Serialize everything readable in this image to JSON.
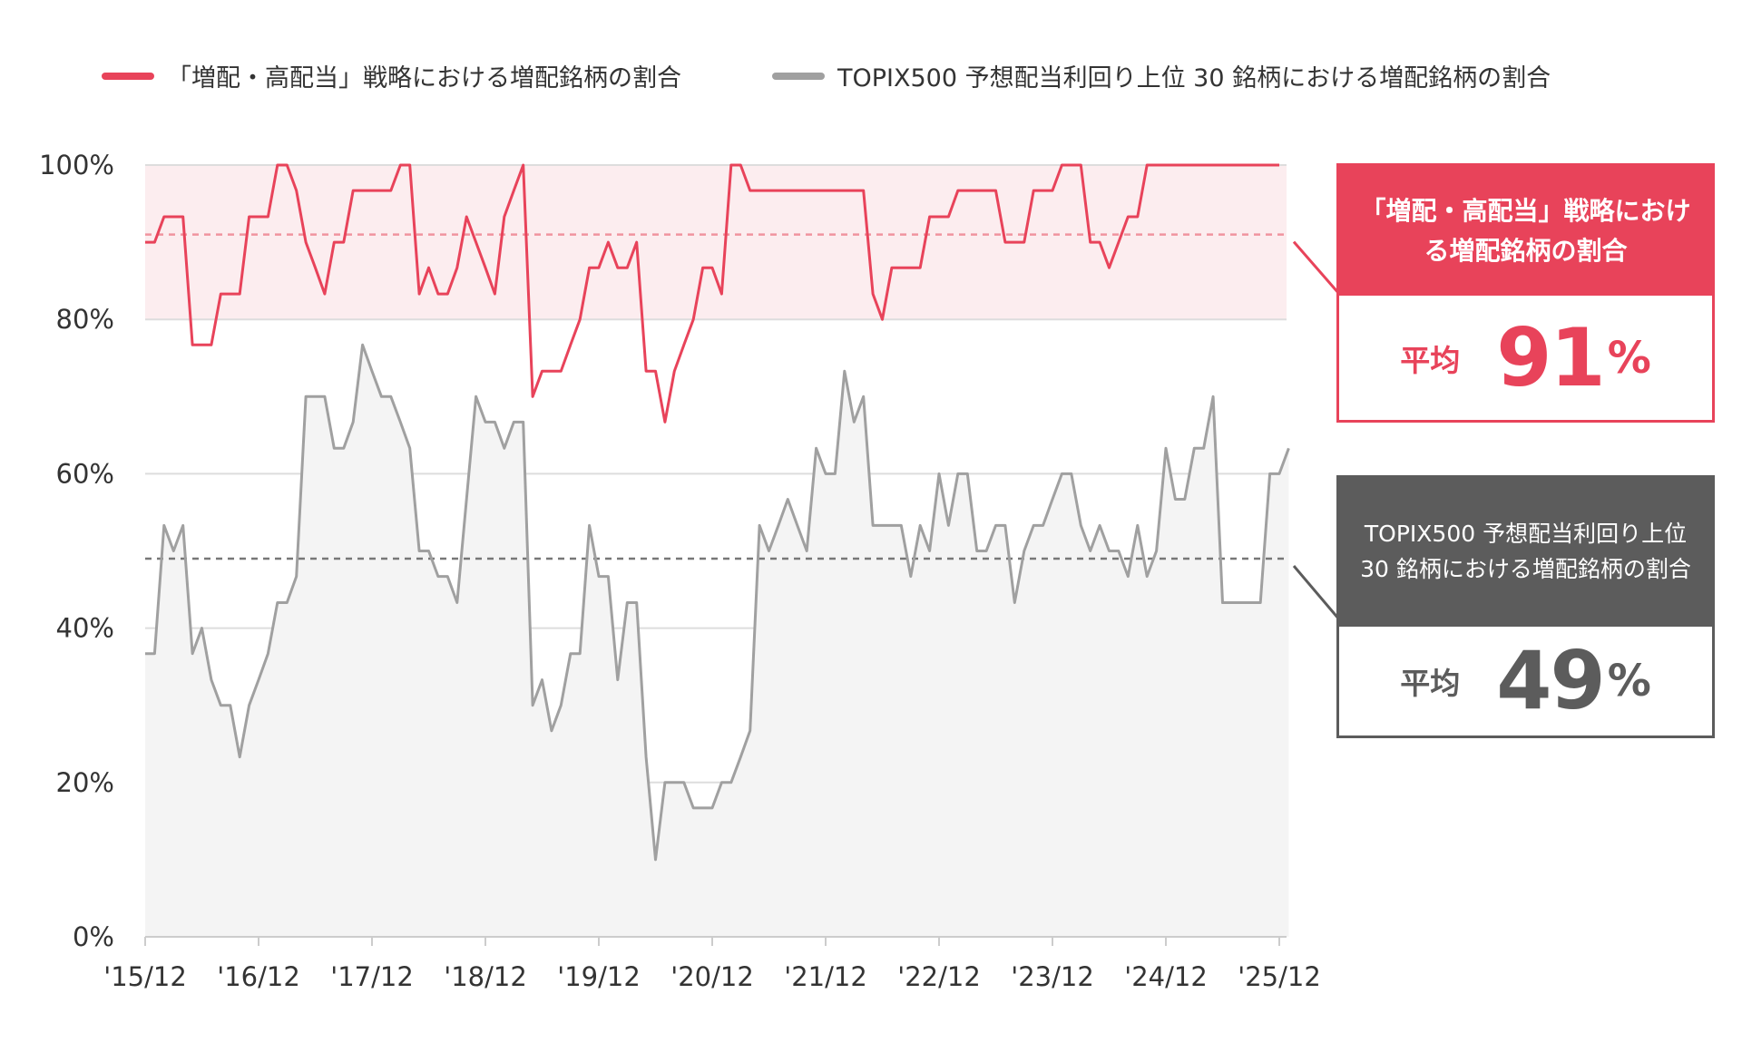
{
  "legend": [
    {
      "label": "「増配・高配当」戦略における増配銘柄の割合",
      "color": "#e8435a"
    },
    {
      "label": "TOPIX500 予想配当利回り上位 30 銘柄における増配銘柄の割合",
      "color": "#a0a0a0"
    }
  ],
  "callouts": {
    "strategy": {
      "title": "「増配・高配当」戦略における増配銘柄の割合",
      "avg_label": "平均",
      "avg_value": "91",
      "unit": "%",
      "color": "#e8435a"
    },
    "topix": {
      "title": "TOPIX500 予想配当利回り上位 30 銘柄における増配銘柄の割合",
      "avg_label": "平均",
      "avg_value": "49",
      "unit": "%",
      "color": "#5c5c5c"
    }
  },
  "chart_data": {
    "type": "line",
    "x_tick_labels": [
      "'15/12",
      "'16/12",
      "'17/12",
      "'18/12",
      "'19/12",
      "'20/12",
      "'21/12",
      "'22/12",
      "'23/12",
      "'24/12",
      "'25/12"
    ],
    "y_tick_labels": [
      "0%",
      "20%",
      "40%",
      "60%",
      "80%",
      "100%"
    ],
    "ylim": [
      0,
      100
    ],
    "xlim": [
      "2015-12",
      "2025-12"
    ],
    "grid": true,
    "legend_position": "top",
    "averages": [
      91,
      49
    ],
    "series": [
      {
        "name": "「増配・高配当」戦略における増配銘柄の割合",
        "color": "#e8435a",
        "values": [
          [
            "2015-12",
            90
          ],
          [
            "2016-01",
            90
          ],
          [
            "2016-02",
            93.3
          ],
          [
            "2016-03",
            93.3
          ],
          [
            "2016-04",
            93.3
          ],
          [
            "2016-05",
            76.7
          ],
          [
            "2016-06",
            76.7
          ],
          [
            "2016-07",
            76.7
          ],
          [
            "2016-08",
            83.3
          ],
          [
            "2016-09",
            83.3
          ],
          [
            "2016-10",
            83.3
          ],
          [
            "2016-11",
            93.3
          ],
          [
            "2016-12",
            93.3
          ],
          [
            "2017-01",
            93.3
          ],
          [
            "2017-02",
            100
          ],
          [
            "2017-03",
            100
          ],
          [
            "2017-04",
            96.7
          ],
          [
            "2017-05",
            90
          ],
          [
            "2017-06",
            86.7
          ],
          [
            "2017-07",
            83.3
          ],
          [
            "2017-08",
            90
          ],
          [
            "2017-09",
            90
          ],
          [
            "2017-10",
            96.7
          ],
          [
            "2017-11",
            96.7
          ],
          [
            "2017-12",
            96.7
          ],
          [
            "2018-01",
            96.7
          ],
          [
            "2018-02",
            96.7
          ],
          [
            "2018-03",
            100
          ],
          [
            "2018-04",
            100
          ],
          [
            "2018-05",
            83.3
          ],
          [
            "2018-06",
            86.7
          ],
          [
            "2018-07",
            83.3
          ],
          [
            "2018-08",
            83.3
          ],
          [
            "2018-09",
            86.7
          ],
          [
            "2018-10",
            93.3
          ],
          [
            "2018-11",
            90
          ],
          [
            "2018-12",
            86.7
          ],
          [
            "2019-01",
            83.3
          ],
          [
            "2019-02",
            93.3
          ],
          [
            "2019-03",
            96.7
          ],
          [
            "2019-04",
            100
          ],
          [
            "2019-05",
            70
          ],
          [
            "2019-06",
            73.3
          ],
          [
            "2019-07",
            73.3
          ],
          [
            "2019-08",
            73.3
          ],
          [
            "2019-09",
            76.7
          ],
          [
            "2019-10",
            80
          ],
          [
            "2019-11",
            86.7
          ],
          [
            "2019-12",
            86.7
          ],
          [
            "2020-01",
            90
          ],
          [
            "2020-02",
            86.7
          ],
          [
            "2020-03",
            86.7
          ],
          [
            "2020-04",
            90
          ],
          [
            "2020-05",
            73.3
          ],
          [
            "2020-06",
            73.3
          ],
          [
            "2020-07",
            66.7
          ],
          [
            "2020-08",
            73.3
          ],
          [
            "2020-09",
            76.7
          ],
          [
            "2020-10",
            80
          ],
          [
            "2020-11",
            86.7
          ],
          [
            "2020-12",
            86.7
          ],
          [
            "2021-01",
            83.3
          ],
          [
            "2021-02",
            100
          ],
          [
            "2021-03",
            100
          ],
          [
            "2021-04",
            96.7
          ],
          [
            "2021-05",
            96.7
          ],
          [
            "2021-06",
            96.7
          ],
          [
            "2021-07",
            96.7
          ],
          [
            "2021-08",
            96.7
          ],
          [
            "2021-09",
            96.7
          ],
          [
            "2021-10",
            96.7
          ],
          [
            "2021-11",
            96.7
          ],
          [
            "2021-12",
            96.7
          ],
          [
            "2022-01",
            96.7
          ],
          [
            "2022-02",
            96.7
          ],
          [
            "2022-03",
            96.7
          ],
          [
            "2022-04",
            96.7
          ],
          [
            "2022-05",
            83.3
          ],
          [
            "2022-06",
            80
          ],
          [
            "2022-07",
            86.7
          ],
          [
            "2022-08",
            86.7
          ],
          [
            "2022-09",
            86.7
          ],
          [
            "2022-10",
            86.7
          ],
          [
            "2022-11",
            93.3
          ],
          [
            "2022-12",
            93.3
          ],
          [
            "2023-01",
            93.3
          ],
          [
            "2023-02",
            96.7
          ],
          [
            "2023-03",
            96.7
          ],
          [
            "2023-04",
            96.7
          ],
          [
            "2023-05",
            96.7
          ],
          [
            "2023-06",
            96.7
          ],
          [
            "2023-07",
            90
          ],
          [
            "2023-08",
            90
          ],
          [
            "2023-09",
            90
          ],
          [
            "2023-10",
            96.7
          ],
          [
            "2023-11",
            96.7
          ],
          [
            "2023-12",
            96.7
          ],
          [
            "2024-01",
            100
          ],
          [
            "2024-02",
            100
          ],
          [
            "2024-03",
            100
          ],
          [
            "2024-04",
            90
          ],
          [
            "2024-05",
            90
          ],
          [
            "2024-06",
            86.7
          ],
          [
            "2024-07",
            90
          ],
          [
            "2024-08",
            93.3
          ],
          [
            "2024-09",
            93.3
          ],
          [
            "2024-10",
            100
          ],
          [
            "2024-11",
            100
          ],
          [
            "2024-12",
            100
          ],
          [
            "2025-01",
            100
          ],
          [
            "2025-02",
            100
          ],
          [
            "2025-03",
            100
          ],
          [
            "2025-04",
            100
          ],
          [
            "2025-05",
            100
          ],
          [
            "2025-06",
            100
          ],
          [
            "2025-07",
            100
          ],
          [
            "2025-08",
            100
          ],
          [
            "2025-09",
            100
          ],
          [
            "2025-10",
            100
          ],
          [
            "2025-11",
            100
          ],
          [
            "2025-12",
            100
          ]
        ]
      },
      {
        "name": "TOPIX500 予想配当利回り上位 30 銘柄における増配銘柄の割合",
        "color": "#a0a0a0",
        "values": [
          [
            "2015-12",
            36.7
          ],
          [
            "2016-01",
            36.7
          ],
          [
            "2016-02",
            53.3
          ],
          [
            "2016-03",
            50
          ],
          [
            "2016-04",
            53.3
          ],
          [
            "2016-05",
            36.7
          ],
          [
            "2016-06",
            40
          ],
          [
            "2016-07",
            33.3
          ],
          [
            "2016-08",
            30
          ],
          [
            "2016-09",
            30
          ],
          [
            "2016-10",
            23.3
          ],
          [
            "2016-11",
            30
          ],
          [
            "2016-12",
            33.3
          ],
          [
            "2017-01",
            36.7
          ],
          [
            "2017-02",
            43.3
          ],
          [
            "2017-03",
            43.3
          ],
          [
            "2017-04",
            46.7
          ],
          [
            "2017-05",
            70
          ],
          [
            "2017-06",
            70
          ],
          [
            "2017-07",
            70
          ],
          [
            "2017-08",
            63.3
          ],
          [
            "2017-09",
            63.3
          ],
          [
            "2017-10",
            66.7
          ],
          [
            "2017-11",
            76.7
          ],
          [
            "2017-12",
            73.3
          ],
          [
            "2018-01",
            70
          ],
          [
            "2018-02",
            70
          ],
          [
            "2018-03",
            66.7
          ],
          [
            "2018-04",
            63.3
          ],
          [
            "2018-05",
            50
          ],
          [
            "2018-06",
            50
          ],
          [
            "2018-07",
            46.7
          ],
          [
            "2018-08",
            46.7
          ],
          [
            "2018-09",
            43.3
          ],
          [
            "2018-10",
            56.7
          ],
          [
            "2018-11",
            70
          ],
          [
            "2018-12",
            66.7
          ],
          [
            "2019-01",
            66.7
          ],
          [
            "2019-02",
            63.3
          ],
          [
            "2019-03",
            66.7
          ],
          [
            "2019-04",
            66.7
          ],
          [
            "2019-05",
            30
          ],
          [
            "2019-06",
            33.3
          ],
          [
            "2019-07",
            26.7
          ],
          [
            "2019-08",
            30
          ],
          [
            "2019-09",
            36.7
          ],
          [
            "2019-10",
            36.7
          ],
          [
            "2019-11",
            53.3
          ],
          [
            "2019-12",
            46.7
          ],
          [
            "2020-01",
            46.7
          ],
          [
            "2020-02",
            33.3
          ],
          [
            "2020-03",
            43.3
          ],
          [
            "2020-04",
            43.3
          ],
          [
            "2020-05",
            23.3
          ],
          [
            "2020-06",
            10
          ],
          [
            "2020-07",
            20
          ],
          [
            "2020-08",
            20
          ],
          [
            "2020-09",
            20
          ],
          [
            "2020-10",
            16.7
          ],
          [
            "2020-11",
            16.7
          ],
          [
            "2020-12",
            16.7
          ],
          [
            "2021-01",
            20
          ],
          [
            "2021-02",
            20
          ],
          [
            "2021-03",
            23.3
          ],
          [
            "2021-04",
            26.7
          ],
          [
            "2021-05",
            53.3
          ],
          [
            "2021-06",
            50
          ],
          [
            "2021-07",
            53.3
          ],
          [
            "2021-08",
            56.7
          ],
          [
            "2021-09",
            53.3
          ],
          [
            "2021-10",
            50
          ],
          [
            "2021-11",
            63.3
          ],
          [
            "2021-12",
            60
          ],
          [
            "2022-01",
            60
          ],
          [
            "2022-02",
            73.3
          ],
          [
            "2022-03",
            66.7
          ],
          [
            "2022-04",
            70
          ],
          [
            "2022-05",
            53.3
          ],
          [
            "2022-06",
            53.3
          ],
          [
            "2022-07",
            53.3
          ],
          [
            "2022-08",
            53.3
          ],
          [
            "2022-09",
            46.7
          ],
          [
            "2022-10",
            53.3
          ],
          [
            "2022-11",
            50
          ],
          [
            "2022-12",
            60
          ],
          [
            "2023-01",
            53.3
          ],
          [
            "2023-02",
            60
          ],
          [
            "2023-03",
            60
          ],
          [
            "2023-04",
            50
          ],
          [
            "2023-05",
            50
          ],
          [
            "2023-06",
            53.3
          ],
          [
            "2023-07",
            53.3
          ],
          [
            "2023-08",
            43.3
          ],
          [
            "2023-09",
            50
          ],
          [
            "2023-10",
            53.3
          ],
          [
            "2023-11",
            53.3
          ],
          [
            "2023-12",
            56.7
          ],
          [
            "2024-01",
            60
          ],
          [
            "2024-02",
            60
          ],
          [
            "2024-03",
            53.3
          ],
          [
            "2024-04",
            50
          ],
          [
            "2024-05",
            53.3
          ],
          [
            "2024-06",
            50
          ],
          [
            "2024-07",
            50
          ],
          [
            "2024-08",
            46.7
          ],
          [
            "2024-09",
            53.3
          ],
          [
            "2024-10",
            46.7
          ],
          [
            "2024-11",
            50
          ],
          [
            "2024-12",
            63.3
          ],
          [
            "2025-01",
            56.7
          ],
          [
            "2025-02",
            56.7
          ],
          [
            "2025-03",
            63.3
          ],
          [
            "2025-04",
            63.3
          ],
          [
            "2025-05",
            70
          ],
          [
            "2025-06",
            43.3
          ],
          [
            "2025-07",
            43.3
          ],
          [
            "2025-08",
            43.3
          ],
          [
            "2025-09",
            43.3
          ],
          [
            "2025-10",
            43.3
          ],
          [
            "2025-11",
            60
          ],
          [
            "2025-12",
            60
          ],
          [
            "2026-01",
            63.3
          ]
        ]
      }
    ]
  }
}
